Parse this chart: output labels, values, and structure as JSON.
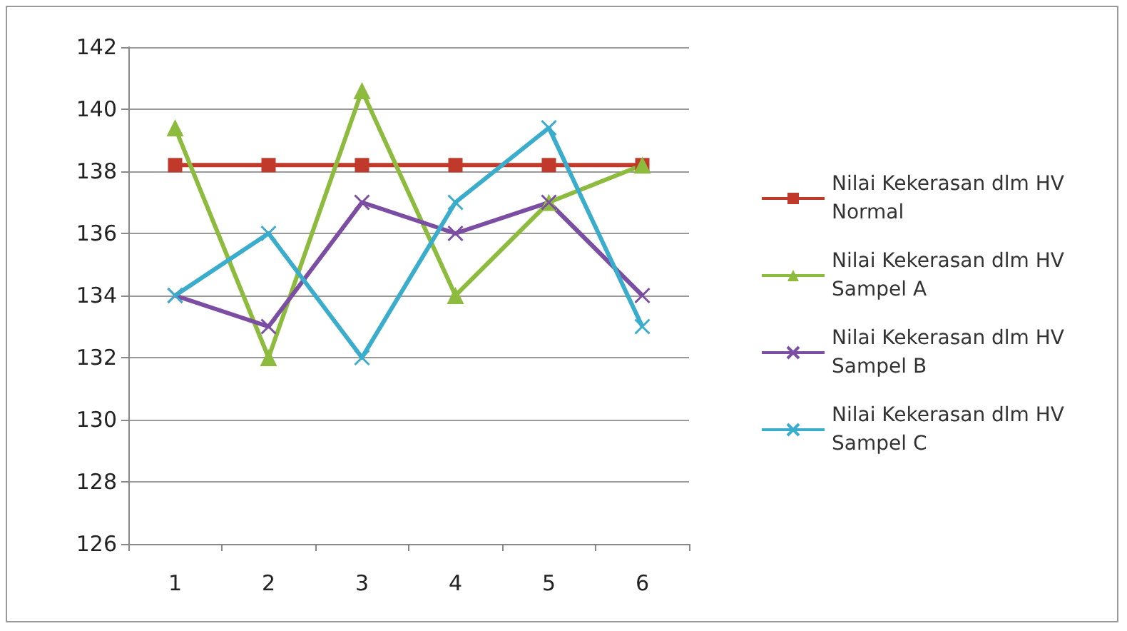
{
  "chart_data": {
    "type": "line",
    "categories": [
      "1",
      "2",
      "3",
      "4",
      "5",
      "6"
    ],
    "series": [
      {
        "name": "Nilai Kekerasan dlm HV Normal",
        "color": "#c0392b",
        "marker": "square",
        "values": [
          138.2,
          138.2,
          138.2,
          138.2,
          138.2,
          138.2
        ]
      },
      {
        "name": "Nilai Kekerasan dlm HV Sampel A",
        "color": "#8dbb3e",
        "marker": "triangle",
        "values": [
          139.4,
          132,
          140.6,
          134,
          137,
          138.2
        ]
      },
      {
        "name": "Nilai Kekerasan dlm HV Sampel B",
        "color": "#7b4ea3",
        "marker": "cross",
        "values": [
          134,
          133,
          137,
          136,
          137,
          134
        ]
      },
      {
        "name": "Nilai Kekerasan dlm HV Sampel C",
        "color": "#3aaccc",
        "marker": "cross",
        "values": [
          134,
          136,
          132,
          137,
          139.4,
          133
        ]
      }
    ],
    "ylim": [
      126,
      142
    ],
    "yticks": [
      126,
      128,
      130,
      132,
      134,
      136,
      138,
      140,
      142
    ],
    "grid": "y",
    "legend": "right"
  }
}
